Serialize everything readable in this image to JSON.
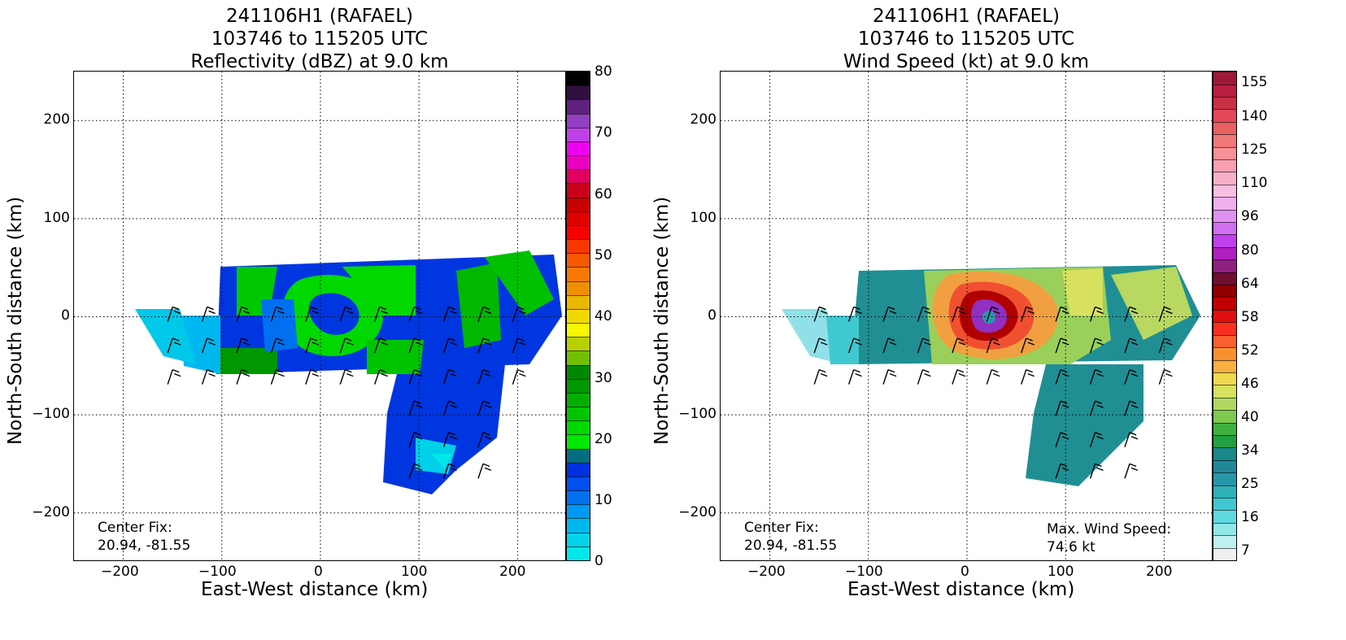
{
  "chart_data": [
    {
      "type": "heatmap",
      "title_lines": [
        "241106H1 (RAFAEL)",
        "103746 to 115205 UTC",
        "Reflectivity (dBZ) at 9.0 km"
      ],
      "xlabel": "East-West distance (km)",
      "ylabel": "North-South distance (km)",
      "xlim": [
        -250,
        250
      ],
      "ylim": [
        -250,
        250
      ],
      "xticks": [
        "−200",
        "−100",
        "0",
        "100",
        "200"
      ],
      "yticks": [
        "200",
        "100",
        "0",
        "−100",
        "−200"
      ],
      "grid": true,
      "colorbar": {
        "ticks": [
          "80",
          "70",
          "60",
          "50",
          "40",
          "30",
          "20",
          "10",
          "0"
        ],
        "colors": [
          "#00e8e8",
          "#00d4e8",
          "#00b8f0",
          "#0098f0",
          "#0070f0",
          "#0050f0",
          "#0030e0",
          "#006e80",
          "#00e800",
          "#00d800",
          "#00c400",
          "#00b000",
          "#009800",
          "#008800",
          "#70c000",
          "#b8d000",
          "#f8f800",
          "#f0d800",
          "#e8b800",
          "#f09000",
          "#f87800",
          "#f85800",
          "#f83800",
          "#f80000",
          "#e00000",
          "#c80000",
          "#c80018",
          "#e00060",
          "#e800c0",
          "#f000f0",
          "#c040e8",
          "#9040c0",
          "#602080",
          "#301040",
          "#000000"
        ]
      },
      "center_fix_label": "Center Fix:",
      "center_fix_value": "20.94, -81.55"
    },
    {
      "type": "heatmap",
      "title_lines": [
        "241106H1 (RAFAEL)",
        "103746 to 115205 UTC",
        "Wind Speed (kt) at 9.0 km"
      ],
      "xlabel": "East-West distance (km)",
      "ylabel": "North-South distance (km)",
      "xlim": [
        -250,
        250
      ],
      "ylim": [
        -250,
        250
      ],
      "xticks": [
        "−200",
        "−100",
        "0",
        "100",
        "200"
      ],
      "yticks": [
        "200",
        "100",
        "0",
        "−100",
        "−200"
      ],
      "grid": true,
      "colorbar": {
        "ticks": [
          "155",
          "140",
          "125",
          "110",
          "96",
          "80",
          "64",
          "58",
          "52",
          "46",
          "40",
          "34",
          "25",
          "16",
          "7"
        ],
        "colors": [
          "#f0f0f0",
          "#c0f0f0",
          "#90e8e8",
          "#60d8e0",
          "#40c8d0",
          "#30b0b8",
          "#2898a8",
          "#208898",
          "#188888",
          "#20a040",
          "#40b040",
          "#80c850",
          "#b0d860",
          "#d8e060",
          "#f0d850",
          "#f8b040",
          "#f89030",
          "#f86030",
          "#f83020",
          "#e01010",
          "#c00000",
          "#900000",
          "#701030",
          "#902080",
          "#b020c0",
          "#c040f0",
          "#d070f0",
          "#e090f0",
          "#f0b0f0",
          "#f8c0e0",
          "#f8b0c8",
          "#f8a0b0",
          "#f89098",
          "#f07878",
          "#e86060",
          "#e04858",
          "#c83048",
          "#b82040",
          "#a01838"
        ]
      },
      "center_fix_label": "Center Fix:",
      "center_fix_value": "20.94, -81.55",
      "max_wind_label": "Max. Wind Speed:",
      "max_wind_value": "74.6 kt"
    }
  ]
}
